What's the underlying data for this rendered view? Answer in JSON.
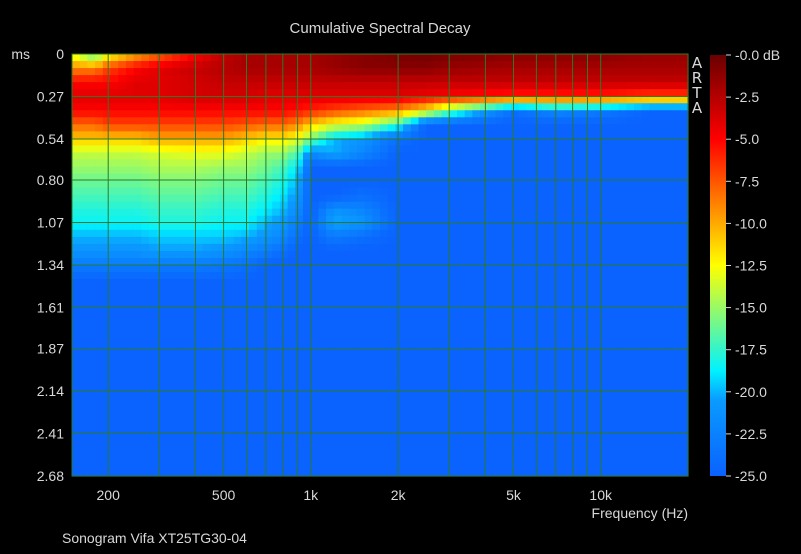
{
  "chart_data": {
    "type": "heatmap",
    "title": "Cumulative Spectral Decay",
    "footer": "Sonogram Vifa XT25TG30-04",
    "watermark": "ARTA",
    "xlabel": "Frequency (Hz)",
    "ylabel": "ms",
    "x_scale": "log",
    "xlim": [
      150,
      20000
    ],
    "ylim": [
      0,
      2.68
    ],
    "x_ticks": [
      {
        "value": 200,
        "label": "200"
      },
      {
        "value": 500,
        "label": "500"
      },
      {
        "value": 1000,
        "label": "1k"
      },
      {
        "value": 2000,
        "label": "2k"
      },
      {
        "value": 5000,
        "label": "5k"
      },
      {
        "value": 10000,
        "label": "10k"
      }
    ],
    "y_ticks": [
      {
        "value": 0,
        "label": "0"
      },
      {
        "value": 0.27,
        "label": "0.27"
      },
      {
        "value": 0.54,
        "label": "0.54"
      },
      {
        "value": 0.8,
        "label": "0.80"
      },
      {
        "value": 1.07,
        "label": "1.07"
      },
      {
        "value": 1.34,
        "label": "1.34"
      },
      {
        "value": 1.61,
        "label": "1.61"
      },
      {
        "value": 1.87,
        "label": "1.87"
      },
      {
        "value": 2.14,
        "label": "2.14"
      },
      {
        "value": 2.41,
        "label": "2.41"
      },
      {
        "value": 2.68,
        "label": "2.68"
      }
    ],
    "colorbar": {
      "unit": "dB",
      "range": [
        -25.0,
        0.0
      ],
      "ticks": [
        "-0.0",
        "-2.5",
        "-5.0",
        "-7.5",
        "-10.0",
        "-12.5",
        "-15.0",
        "-17.5",
        "-20.0",
        "-22.5",
        "-25.0"
      ],
      "colors": [
        "#0a62ff",
        "#00f2ff",
        "#ffff00",
        "#ff0000",
        "#6a0000"
      ]
    },
    "grid": true,
    "levels_db_freqs": [
      150,
      180,
      200,
      250,
      300,
      400,
      500,
      600,
      700,
      800,
      900,
      1000,
      1200,
      1500,
      2000,
      2500,
      3000,
      5000,
      7000,
      10000,
      15000,
      20000
    ],
    "levels_db_times": [
      0,
      0.09,
      0.18,
      0.27,
      0.36,
      0.45,
      0.54,
      0.63,
      0.72,
      0.8,
      0.9,
      1.0,
      1.07,
      1.16,
      1.25,
      1.34,
      1.45,
      1.61
    ],
    "levels_db": [
      [
        -13,
        -17,
        -13,
        -10,
        -8,
        -5,
        -3,
        -2,
        -2,
        -2,
        -2,
        -2,
        -1.5,
        -1,
        -0.5,
        -0.3,
        -0.5,
        -1,
        -1,
        -1,
        -1.5,
        -1.5
      ],
      [
        -9,
        -9,
        -7,
        -5,
        -4,
        -3,
        -2.5,
        -2,
        -2,
        -2,
        -2,
        -2,
        -1.5,
        -1,
        -1,
        -1,
        -1.5,
        -2,
        -2,
        -2,
        -2,
        -2
      ],
      [
        -5,
        -5,
        -5,
        -4,
        -4,
        -3.5,
        -3,
        -3,
        -3,
        -3,
        -3,
        -3,
        -3,
        -3,
        -3,
        -3,
        -3,
        -3,
        -3,
        -3,
        -3,
        -3
      ],
      [
        -4,
        -4,
        -4,
        -4,
        -4,
        -3.5,
        -3.5,
        -3.5,
        -4,
        -4,
        -4,
        -4,
        -4,
        -4,
        -4,
        -4.5,
        -5,
        -6,
        -6,
        -6,
        -7,
        -7
      ],
      [
        -5,
        -5,
        -5,
        -5,
        -5,
        -5,
        -5,
        -5,
        -5,
        -5,
        -5.5,
        -6,
        -7,
        -8,
        -9,
        -12,
        -16,
        -24,
        -22,
        -23,
        -25,
        -25
      ],
      [
        -8,
        -8,
        -7,
        -7,
        -7,
        -7,
        -7,
        -7.5,
        -8,
        -8,
        -9,
        -11,
        -13,
        -14,
        -18,
        -25,
        -25,
        -25,
        -25,
        -25,
        -25,
        -25
      ],
      [
        -11,
        -11,
        -11,
        -11,
        -10,
        -10,
        -10,
        -11,
        -12,
        -12,
        -13,
        -16,
        -20,
        -21,
        -24,
        -25,
        -25,
        -25,
        -25,
        -25,
        -25,
        -25
      ],
      [
        -14,
        -14,
        -14,
        -14,
        -13.5,
        -13,
        -13,
        -14,
        -15,
        -15,
        -17,
        -22,
        -20,
        -22,
        -25,
        -25,
        -25,
        -25,
        -25,
        -25,
        -25,
        -25
      ],
      [
        -15,
        -15,
        -15,
        -15,
        -14.5,
        -14.5,
        -15,
        -15,
        -16,
        -17,
        -19,
        -25,
        -25,
        -25,
        -25,
        -25,
        -25,
        -25,
        -25,
        -25,
        -25,
        -25
      ],
      [
        -16,
        -16,
        -16,
        -16,
        -15.5,
        -15.5,
        -16,
        -16,
        -17,
        -18,
        -20,
        -25,
        -25,
        -25,
        -25,
        -25,
        -25,
        -25,
        -25,
        -25,
        -25,
        -25
      ],
      [
        -17,
        -17,
        -17,
        -17,
        -16.5,
        -16.5,
        -17,
        -17,
        -18,
        -19,
        -21,
        -25,
        -25,
        -24,
        -25,
        -25,
        -25,
        -25,
        -25,
        -25,
        -25,
        -25
      ],
      [
        -18,
        -18,
        -18,
        -18,
        -17.5,
        -17.5,
        -18,
        -18,
        -19,
        -20,
        -22,
        -25,
        -21,
        -22,
        -25,
        -25,
        -25,
        -25,
        -25,
        -25,
        -25,
        -25
      ],
      [
        -18.5,
        -18.5,
        -18.5,
        -18.5,
        -18,
        -18,
        -18.5,
        -18.5,
        -20,
        -21,
        -23,
        -25,
        -20,
        -21,
        -25,
        -25,
        -25,
        -25,
        -25,
        -25,
        -25,
        -25
      ],
      [
        -20,
        -20,
        -20,
        -20,
        -19.5,
        -19.5,
        -19.5,
        -20,
        -21,
        -22,
        -24,
        -25,
        -23,
        -24,
        -25,
        -25,
        -25,
        -25,
        -25,
        -25,
        -25,
        -25
      ],
      [
        -21,
        -21,
        -21,
        -21,
        -20.5,
        -20.5,
        -21,
        -22,
        -23,
        -24,
        -25,
        -25,
        -25,
        -25,
        -25,
        -25,
        -25,
        -25,
        -25,
        -25,
        -25,
        -25
      ],
      [
        -23,
        -23,
        -23,
        -23,
        -23,
        -23,
        -23.5,
        -24,
        -25,
        -25,
        -25,
        -25,
        -25,
        -25,
        -25,
        -25,
        -25,
        -25,
        -25,
        -25,
        -25,
        -25
      ],
      [
        -25,
        -25,
        -25,
        -25,
        -25,
        -25,
        -25,
        -25,
        -25,
        -25,
        -25,
        -25,
        -25,
        -25,
        -25,
        -25,
        -25,
        -25,
        -25,
        -25,
        -25,
        -25
      ],
      [
        -25,
        -25,
        -25,
        -25,
        -25,
        -25,
        -25,
        -25,
        -25,
        -25,
        -25,
        -25,
        -25,
        -25,
        -25,
        -25,
        -25,
        -25,
        -25,
        -25,
        -25,
        -25
      ]
    ]
  }
}
